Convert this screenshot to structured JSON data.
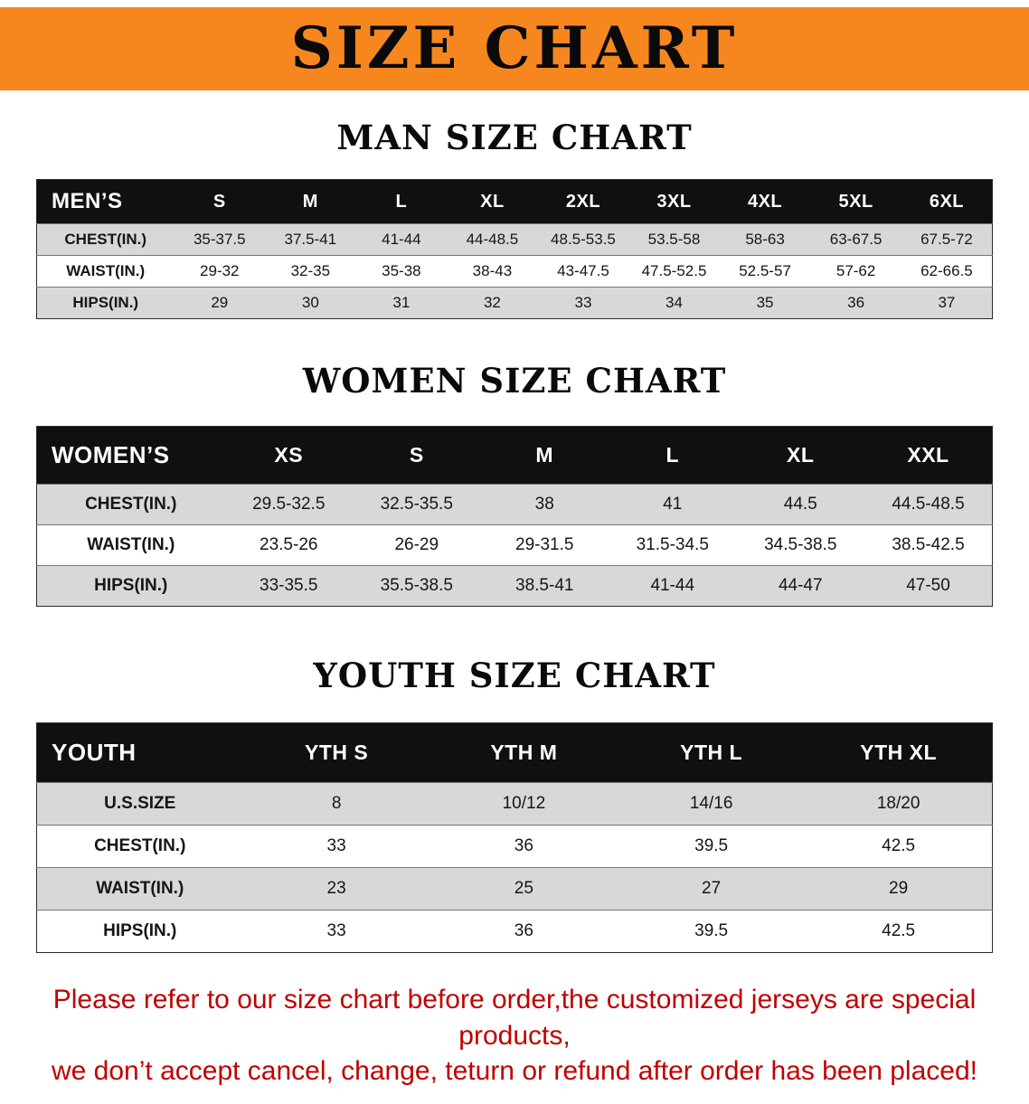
{
  "banner": {
    "title": "SIZE CHART"
  },
  "sections": [
    {
      "heading": "MAN SIZE CHART",
      "table": {
        "header": [
          "MEN’S",
          "S",
          "M",
          "L",
          "XL",
          "2XL",
          "3XL",
          "4XL",
          "5XL",
          "6XL"
        ],
        "rows": [
          [
            "CHEST(IN.)",
            "35-37.5",
            "37.5-41",
            "41-44",
            "44-48.5",
            "48.5-53.5",
            "53.5-58",
            "58-63",
            "63-67.5",
            "67.5-72"
          ],
          [
            "WAIST(IN.)",
            "29-32",
            "32-35",
            "35-38",
            "38-43",
            "43-47.5",
            "47.5-52.5",
            "52.5-57",
            "57-62",
            "62-66.5"
          ],
          [
            "HIPS(IN.)",
            "29",
            "30",
            "31",
            "32",
            "33",
            "34",
            "35",
            "36",
            "37"
          ]
        ]
      }
    },
    {
      "heading": "WOMEN SIZE CHART",
      "table": {
        "header": [
          "WOMEN’S",
          "XS",
          "S",
          "M",
          "L",
          "XL",
          "XXL"
        ],
        "rows": [
          [
            "CHEST(IN.)",
            "29.5-32.5",
            "32.5-35.5",
            "38",
            "41",
            "44.5",
            "44.5-48.5"
          ],
          [
            "WAIST(IN.)",
            "23.5-26",
            "26-29",
            "29-31.5",
            "31.5-34.5",
            "34.5-38.5",
            "38.5-42.5"
          ],
          [
            "HIPS(IN.)",
            "33-35.5",
            "35.5-38.5",
            "38.5-41",
            "41-44",
            "44-47",
            "47-50"
          ]
        ]
      }
    },
    {
      "heading": "YOUTH SIZE CHART",
      "table": {
        "header": [
          "YOUTH",
          "YTH S",
          "YTH M",
          "YTH L",
          "YTH XL"
        ],
        "rows": [
          [
            "U.S.SIZE",
            "8",
            "10/12",
            "14/16",
            "18/20"
          ],
          [
            "CHEST(IN.)",
            "33",
            "36",
            "39.5",
            "42.5"
          ],
          [
            "WAIST(IN.)",
            "23",
            "25",
            "27",
            "29"
          ],
          [
            "HIPS(IN.)",
            "33",
            "36",
            "39.5",
            "42.5"
          ]
        ]
      }
    }
  ],
  "footer": {
    "line1": "Please refer to our size chart before order,the customized jerseys are special products,",
    "line2": "we don’t accept cancel, change, teturn or refund after order has been placed!"
  },
  "colors": {
    "banner_bg": "#f6871f",
    "header_bg": "#101010",
    "row_alt_bg": "#d8d8d8",
    "footer_text": "#c00000"
  }
}
